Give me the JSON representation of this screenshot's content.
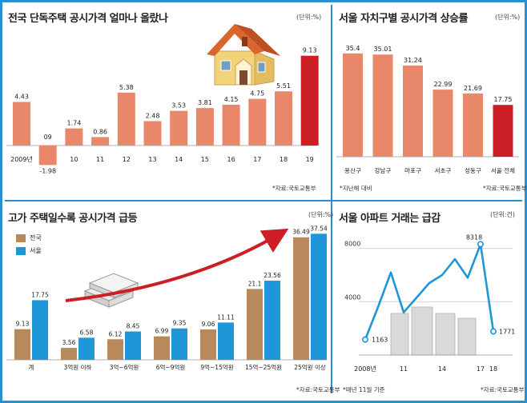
{
  "panels": {
    "p1": {
      "title": "전국 단독주택 공시가격 얼마나 올랐나",
      "unit": "(단위:%)",
      "source": "*자료:국토교통부"
    },
    "p2": {
      "title": "서울 자치구별 공시가격 상승률",
      "unit": "(단위:%)",
      "note": "*지난해 대비",
      "source": "*자료:국토교통부"
    },
    "p3": {
      "title": "고가 주택일수록 공시가격 급등",
      "unit": "(단위:%)",
      "legend": [
        "전국",
        "서울"
      ],
      "source": "*자료:국토교통부"
    },
    "p4": {
      "title": "서울 아파트 거래는 급감",
      "unit": "(단위:건)",
      "note": "*매년 11월 기준",
      "source": "*자료:국토교통부"
    }
  },
  "colors": {
    "salmon": "#e8876a",
    "red": "#cc1f25",
    "brown": "#b8895a",
    "blue": "#1e96d8",
    "line": "#1e96d8",
    "frame": "#2a8fd0"
  },
  "chart_data": [
    {
      "type": "bar",
      "title": "전국 단독주택 공시가격 얼마나 올랐나",
      "categories": [
        "2009년",
        "09",
        "10",
        "11",
        "12",
        "13",
        "14",
        "15",
        "16",
        "17",
        "18",
        "19"
      ],
      "value_labels": [
        "4.43",
        "-1.98",
        "1.74",
        "0.86",
        "5.38",
        "2.48",
        "3.53",
        "3.81",
        "4.15",
        "4.75",
        "5.51",
        "9.13"
      ],
      "values": [
        4.43,
        -1.98,
        1.74,
        0.86,
        5.38,
        2.48,
        3.53,
        3.81,
        4.15,
        4.75,
        5.51,
        9.13
      ],
      "highlight_index": 11
    },
    {
      "type": "bar",
      "title": "서울 자치구별 공시가격 상승률",
      "categories": [
        "용산구",
        "강남구",
        "마포구",
        "서초구",
        "성동구",
        "서울 전체"
      ],
      "value_labels": [
        "35.4",
        "35.01",
        "31.24",
        "22.99",
        "21.69",
        "17.75"
      ],
      "values": [
        35.4,
        35.01,
        31.24,
        22.99,
        21.69,
        17.75
      ],
      "highlight_index": 5
    },
    {
      "type": "bar",
      "title": "고가 주택일수록 공시가격 급등",
      "categories": [
        "계",
        "3억원 이하",
        "3억~6억원",
        "6억~9억원",
        "9억~15억원",
        "15억~25억원",
        "25억원 이상"
      ],
      "series": [
        {
          "name": "전국",
          "value_labels": [
            "9.13",
            "3.56",
            "6.12",
            "6.99",
            "9.06",
            "21.1",
            "36.49"
          ],
          "values": [
            9.13,
            3.56,
            6.12,
            6.99,
            9.06,
            21.1,
            36.49
          ]
        },
        {
          "name": "서울",
          "value_labels": [
            "17.75",
            "6.58",
            "8.45",
            "9.35",
            "11.11",
            "23.56",
            "37.54"
          ],
          "values": [
            17.75,
            6.58,
            8.45,
            9.35,
            11.11,
            23.56,
            37.54
          ]
        }
      ]
    },
    {
      "type": "line",
      "title": "서울 아파트 거래는 급감",
      "x": [
        2008,
        2009,
        2010,
        2011,
        2012,
        2013,
        2014,
        2015,
        2016,
        2017,
        2018
      ],
      "x_tick_labels": [
        "2008년",
        "11",
        "14",
        "17",
        "18"
      ],
      "x_ticks": [
        2008,
        2011,
        2014,
        2017,
        2018
      ],
      "y": [
        1163,
        3600,
        6200,
        3200,
        4300,
        5400,
        6000,
        7200,
        5800,
        8318,
        1771
      ],
      "y_ticks": [
        4000,
        8000
      ],
      "y_tick_labels": [
        "4000",
        "8000"
      ],
      "ylim": [
        0,
        9000
      ],
      "labeled_points": [
        {
          "x": 2008,
          "label": "1163"
        },
        {
          "x": 2017,
          "label": "8318"
        },
        {
          "x": 2018,
          "label": "1771"
        }
      ]
    }
  ]
}
